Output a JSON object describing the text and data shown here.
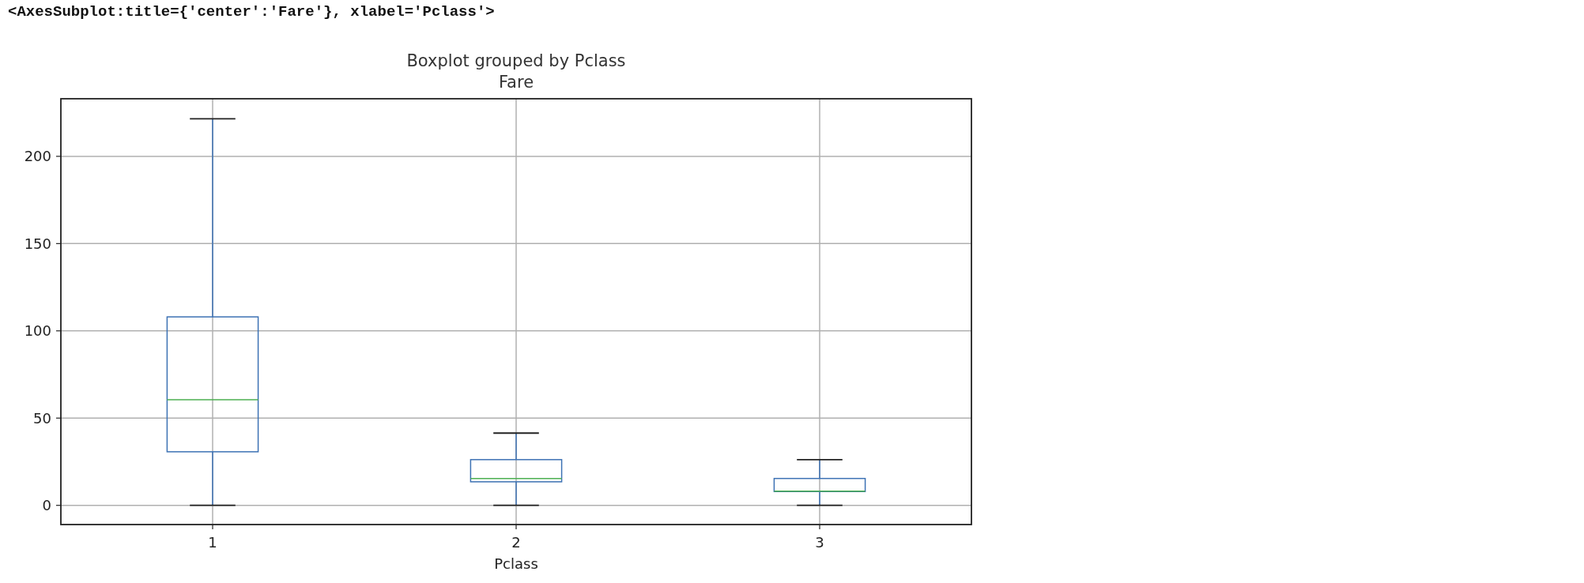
{
  "chart_data": {
    "type": "box",
    "title": "Boxplot grouped by Pclass",
    "subtitle": "Fare",
    "xlabel": "Pclass",
    "annotations": [
      "<AxesSubplot:title={'center':'Fare'}, xlabel='Pclass'>"
    ],
    "categories": [
      "1",
      "2",
      "3"
    ],
    "series": [
      {
        "color": "#3d72b4",
        "boxes": [
          {
            "low": 0,
            "q1": 30.7,
            "median": 60.5,
            "q3": 108,
            "high": 221.5
          },
          {
            "low": 0,
            "q1": 13.5,
            "median": 15.4,
            "q3": 26.2,
            "high": 41.4
          },
          {
            "low": 0,
            "q1": 7.9,
            "median": 8.1,
            "q3": 15.4,
            "high": 26.2
          }
        ]
      }
    ],
    "ylim": [
      -11,
      233
    ],
    "yticks": [
      0,
      50,
      100,
      150,
      200
    ],
    "grid": true
  }
}
